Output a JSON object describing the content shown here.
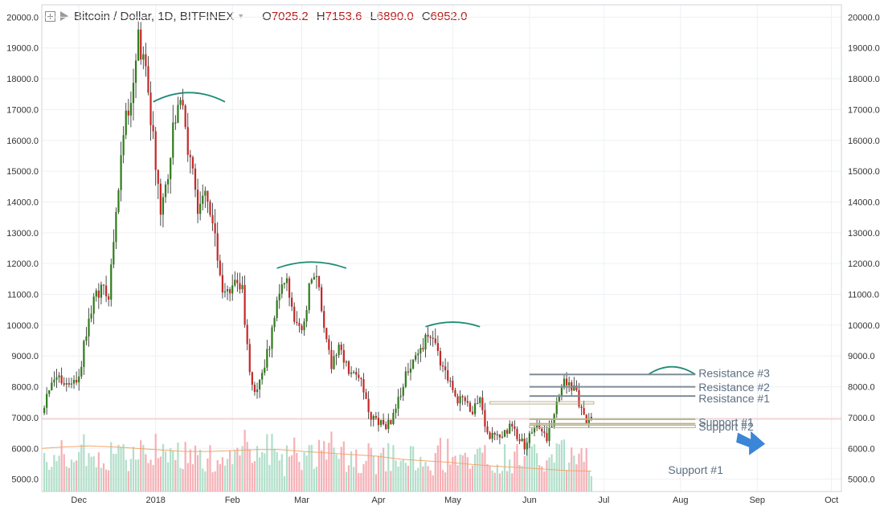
{
  "header": {
    "symbol": "Bitcoin / Dollar, 1D, BITFINEX",
    "ohlc": [
      {
        "k": "O",
        "v": "7025.2"
      },
      {
        "k": "H",
        "v": "7153.6"
      },
      {
        "k": "L",
        "v": "6890.0"
      },
      {
        "k": "C",
        "v": "6952.0"
      }
    ],
    "icons": [
      "plus-box-icon",
      "flag-icon",
      "caret-down-icon"
    ]
  },
  "colors": {
    "up": "#2e7d1a",
    "down": "#c62828",
    "wick": "#222222",
    "vol_up": "#a8dcc4",
    "vol_down": "#f4a9ae",
    "ma": "#f2a66a",
    "arc": "#1e8c78",
    "level": "#7f8c98",
    "support": "#b6b08a",
    "label": "#5b6f82",
    "arrow": "#3b86d6",
    "price_line": "#f0b8b8"
  },
  "chart_data": {
    "type": "candlestick",
    "title": "Bitcoin / Dollar, 1D, BITFINEX",
    "ylim": [
      4600,
      20400
    ],
    "y_ticks": [
      "5000.0",
      "6000.0",
      "7000.0",
      "8000.0",
      "9000.0",
      "10000.0",
      "11000.0",
      "12000.0",
      "13000.0",
      "14000.0",
      "15000.0",
      "16000.0",
      "17000.0",
      "18000.0",
      "19000.0",
      "20000.0"
    ],
    "x_range": [
      "2017-11-16",
      "2018-10-05"
    ],
    "x_ticks": [
      {
        "date": "2017-12-01",
        "label": "Dec"
      },
      {
        "date": "2018-01-01",
        "label": "2018"
      },
      {
        "date": "2018-02-01",
        "label": "Feb"
      },
      {
        "date": "2018-03-01",
        "label": "Mar"
      },
      {
        "date": "2018-04-01",
        "label": "Apr"
      },
      {
        "date": "2018-05-01",
        "label": "May"
      },
      {
        "date": "2018-06-01",
        "label": "Jun"
      },
      {
        "date": "2018-07-01",
        "label": "Jul"
      },
      {
        "date": "2018-08-01",
        "label": "Aug"
      },
      {
        "date": "2018-09-01",
        "label": "Sep"
      },
      {
        "date": "2018-10-01",
        "label": "Oct"
      }
    ],
    "start_date": "2017-11-16",
    "close_anchors": [
      7200,
      7800,
      8250,
      8100,
      8000,
      8400,
      9800,
      10900,
      11300,
      11000,
      13800,
      16400,
      17400,
      19200,
      18600,
      16000,
      13600,
      15000,
      16800,
      17100,
      15200,
      13900,
      14300,
      13600,
      11400,
      10900,
      11300,
      11100,
      8300,
      7800,
      8600,
      9900,
      11000,
      11400,
      10200,
      9800,
      11100,
      11600,
      10100,
      8600,
      9200,
      8700,
      8500,
      8300,
      7100,
      6900,
      6700,
      6800,
      7600,
      8300,
      9000,
      9300,
      9700,
      9200,
      8600,
      8100,
      7500,
      7600,
      7200,
      7500,
      6500,
      6300,
      6400,
      6700,
      6400,
      6100,
      6600,
      6700,
      6300,
      7000,
      8100,
      8200,
      7700,
      7000,
      6950
    ],
    "anchor_step_days": 3,
    "last_candle": {
      "open": 7025.2,
      "high": 7153.6,
      "low": 6890.0,
      "close": 6952.0
    },
    "current_price": 6952.0,
    "volume_note": "relative volume bars drawn at bottom with a moving-average line",
    "ma_anchors": [
      6000,
      6050,
      6080,
      6050,
      6000,
      5950,
      5900,
      5900,
      5930,
      5960,
      5960,
      5900,
      5850,
      5800,
      5750,
      5650,
      5600,
      5550,
      5480,
      5420,
      5380,
      5330,
      5280,
      5260
    ],
    "arcs": [
      {
        "x0": "2017-12-31",
        "x1": "2018-01-29",
        "y_base": 17250,
        "y_peak": 17550
      },
      {
        "x0": "2018-02-19",
        "x1": "2018-03-19",
        "y_base": 11850,
        "y_peak": 12050
      },
      {
        "x0": "2018-04-20",
        "x1": "2018-05-12",
        "y_base": 9950,
        "y_peak": 10100
      },
      {
        "x0": "2018-07-19",
        "x1": "2018-08-07",
        "y_base": 8400,
        "y_peak": 8650
      }
    ],
    "levels": [
      {
        "name": "Resistance #3",
        "y": 8400,
        "x0": "2018-06-01",
        "x1": "2018-08-07",
        "label_y": 8320,
        "kind": "resistance"
      },
      {
        "name": "Resistance #2",
        "y": 8000,
        "x0": "2018-06-01",
        "x1": "2018-08-07",
        "label_y": 7860,
        "kind": "resistance"
      },
      {
        "name": "Resistance #1",
        "y": 7700,
        "x0": "2018-06-01",
        "x1": "2018-08-07",
        "label_y": 7500,
        "kind": "resistance"
      },
      {
        "name": "Support #1",
        "y": 6950,
        "x0": "2018-06-01",
        "x1": "2018-08-07",
        "label_y": 6720,
        "kind": "support"
      },
      {
        "name": "Support #2",
        "y": 6800,
        "x0": "2018-06-01",
        "x1": "2018-08-07",
        "label_y": 6580,
        "kind": "support"
      }
    ],
    "extra_lines": [
      {
        "y": 7480,
        "x0": "2018-05-16",
        "x1": "2018-06-27"
      },
      {
        "y": 6710,
        "x0": "2018-06-01",
        "x1": "2018-08-07"
      }
    ],
    "bottom_label": {
      "text": "Support #1",
      "x": "2018-07-27",
      "y": 5180
    },
    "arrow": {
      "x": "2018-08-30",
      "y": 6250
    }
  }
}
